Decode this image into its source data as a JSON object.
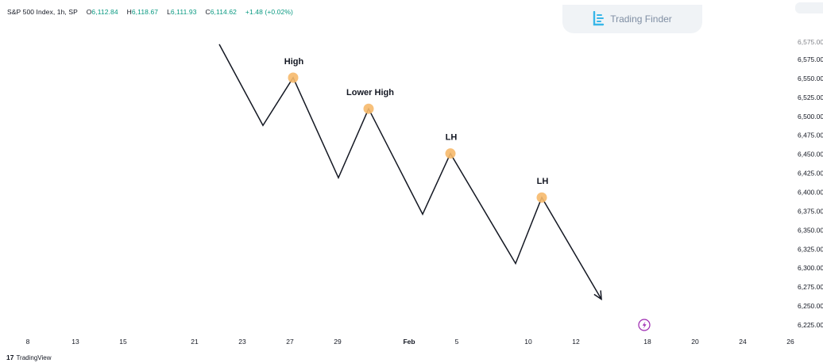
{
  "header": {
    "symbol": "S&P 500 Index, 1h, SP",
    "open_key": "O",
    "open_val": "6,112.84",
    "high_key": "H",
    "high_val": "6,118.67",
    "low_key": "L",
    "low_val": "6,111.93",
    "close_key": "C",
    "close_val": "6,114.62",
    "change": "+1.48 (+0.02%)"
  },
  "brand": {
    "name": "Trading Finder"
  },
  "footer": {
    "mark": "17",
    "name": "TradingView"
  },
  "colors": {
    "line": "#131722",
    "marker": "#f6b96b",
    "ohlc_value": "#089981",
    "axis_text": "#131722",
    "event_icon": "#9c27b0"
  },
  "chart_data": {
    "type": "line",
    "y_ticks": [
      "6,575.00",
      "6,550.00",
      "6,525.00",
      "6,500.00",
      "6,475.00",
      "6,450.00",
      "6,425.00",
      "6,400.00",
      "6,375.00",
      "6,350.00",
      "6,325.00",
      "6,300.00",
      "6,275.00",
      "6,250.00",
      "6,225.00"
    ],
    "x_ticks": [
      {
        "label": "8",
        "bold": false
      },
      {
        "label": "13",
        "bold": false
      },
      {
        "label": "15",
        "bold": false
      },
      {
        "label": "21",
        "bold": false
      },
      {
        "label": "23",
        "bold": false
      },
      {
        "label": "27",
        "bold": false
      },
      {
        "label": "29",
        "bold": false
      },
      {
        "label": "Feb",
        "bold": true
      },
      {
        "label": "5",
        "bold": false
      },
      {
        "label": "10",
        "bold": false
      },
      {
        "label": "12",
        "bold": false
      },
      {
        "label": "18",
        "bold": false
      },
      {
        "label": "20",
        "bold": false
      },
      {
        "label": "24",
        "bold": false
      },
      {
        "label": "26",
        "bold": false
      }
    ],
    "path_points": [
      {
        "x": "22",
        "y": 6595
      },
      {
        "x": "25",
        "y": 6488
      },
      {
        "x": "27",
        "y": 6551
      },
      {
        "x": "29.5",
        "y": 6419
      },
      {
        "x": "Feb 1",
        "y": 6510
      },
      {
        "x": "Feb 3",
        "y": 6371
      },
      {
        "x": "Feb 5",
        "y": 6451
      },
      {
        "x": "Feb 8",
        "y": 6306
      },
      {
        "x": "Feb 10",
        "y": 6393
      },
      {
        "x": "Feb 13",
        "y": 6259
      }
    ],
    "swing_highs": [
      {
        "label": "High",
        "y": 6551
      },
      {
        "label": "Lower High",
        "y": 6510
      },
      {
        "label": "LH",
        "y": 6451
      },
      {
        "label": "LH",
        "y": 6393
      }
    ],
    "ylim": [
      6225,
      6600
    ],
    "direction": "downtrend"
  }
}
